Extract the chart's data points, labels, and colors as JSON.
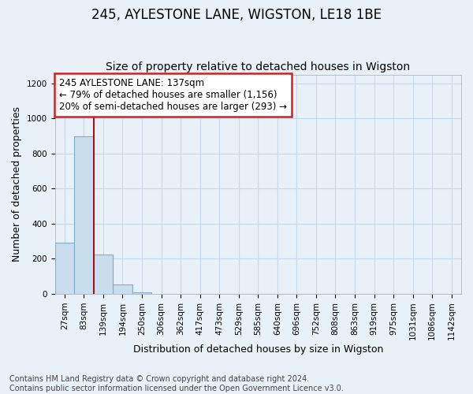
{
  "title": "245, AYLESTONE LANE, WIGSTON, LE18 1BE",
  "subtitle": "Size of property relative to detached houses in Wigston",
  "xlabel": "Distribution of detached houses by size in Wigston",
  "ylabel": "Number of detached properties",
  "bin_labels": [
    "27sqm",
    "83sqm",
    "139sqm",
    "194sqm",
    "250sqm",
    "306sqm",
    "362sqm",
    "417sqm",
    "473sqm",
    "529sqm",
    "585sqm",
    "640sqm",
    "696sqm",
    "752sqm",
    "808sqm",
    "863sqm",
    "919sqm",
    "975sqm",
    "1031sqm",
    "1086sqm",
    "1142sqm"
  ],
  "bar_heights": [
    290,
    900,
    225,
    55,
    10,
    0,
    0,
    0,
    0,
    0,
    0,
    0,
    0,
    0,
    0,
    0,
    0,
    0,
    0,
    0,
    0
  ],
  "bar_color": "#c9ddef",
  "bar_edge_color": "#7aafc8",
  "vline_color": "#aa1111",
  "annotation_text": "245 AYLESTONE LANE: 137sqm\n← 79% of detached houses are smaller (1,156)\n20% of semi-detached houses are larger (293) →",
  "annotation_box_color": "#ffffff",
  "annotation_edge_color": "#cc2222",
  "ylim": [
    0,
    1250
  ],
  "yticks": [
    0,
    200,
    400,
    600,
    800,
    1000,
    1200
  ],
  "footer_text": "Contains HM Land Registry data © Crown copyright and database right 2024.\nContains public sector information licensed under the Open Government Licence v3.0.",
  "background_color": "#e8f0f8",
  "plot_background_color": "#e8f0f8",
  "grid_color": "#c8d8e8",
  "title_fontsize": 12,
  "subtitle_fontsize": 10,
  "axis_label_fontsize": 9,
  "tick_fontsize": 7.5,
  "annotation_fontsize": 8.5,
  "footer_fontsize": 7
}
